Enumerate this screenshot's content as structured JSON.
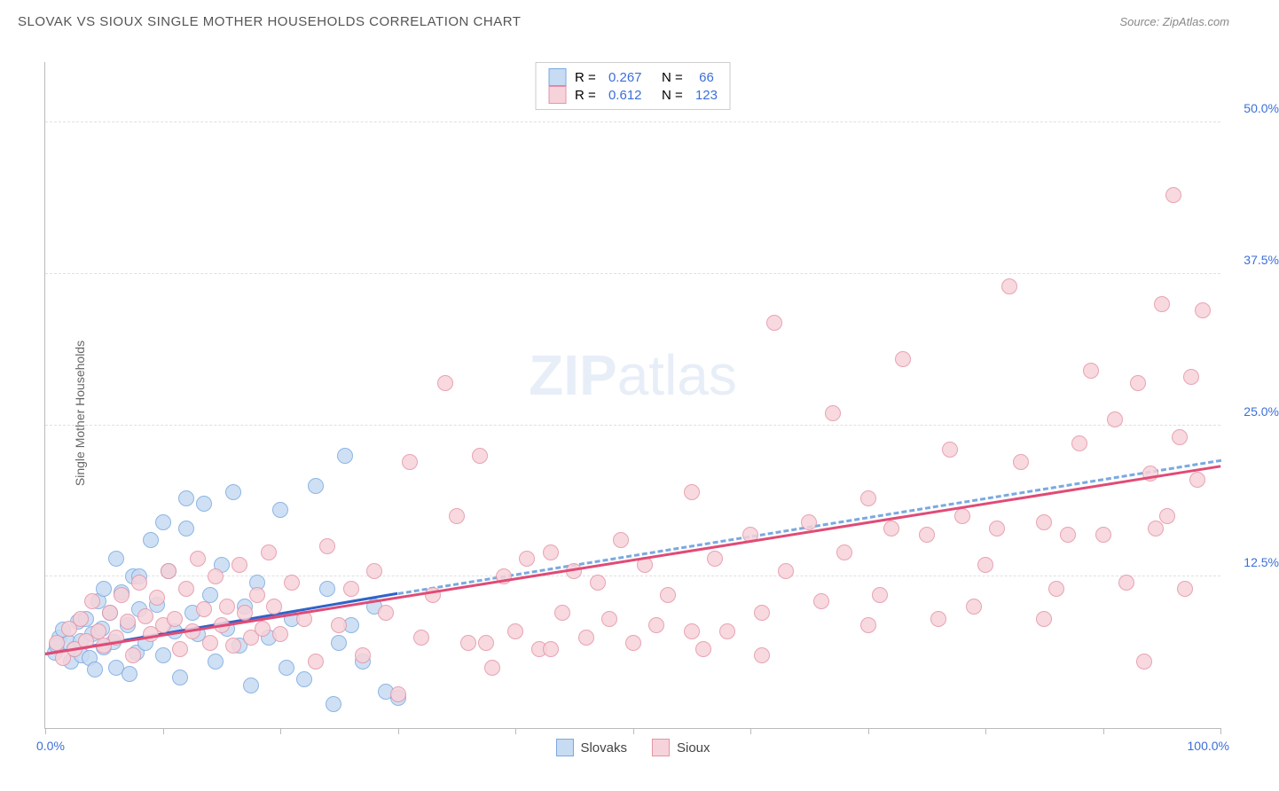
{
  "title": "SLOVAK VS SIOUX SINGLE MOTHER HOUSEHOLDS CORRELATION CHART",
  "source": "Source: ZipAtlas.com",
  "ylabel": "Single Mother Households",
  "watermark_a": "ZIP",
  "watermark_b": "atlas",
  "chart": {
    "type": "scatter",
    "xlim": [
      0,
      100
    ],
    "ylim": [
      0,
      55
    ],
    "yticks": [
      12.5,
      25.0,
      37.5,
      50.0
    ],
    "ytick_labels": [
      "12.5%",
      "25.0%",
      "37.5%",
      "50.0%"
    ],
    "xticks": [
      0,
      10,
      20,
      30,
      40,
      50,
      60,
      70,
      80,
      90,
      100
    ],
    "x_left_label": "0.0%",
    "x_right_label": "100.0%",
    "background_color": "#ffffff",
    "grid_color": "#e0e0e0",
    "axis_color": "#bbbbbb",
    "label_color": "#3b6fd8",
    "marker_size": 18,
    "watermark_color": "#e8eef8",
    "series": [
      {
        "name": "Slovaks",
        "fill": "#c7dbf3",
        "stroke": "#7aa9e0",
        "trend_color": "#2f63c9",
        "trend_dash": "none",
        "r": "0.267",
        "n": "66",
        "trend": {
          "x1": 0,
          "y1": 6.0,
          "x2": 30,
          "y2": 11.0
        },
        "trend_ext": {
          "x1": 30,
          "y1": 11.0,
          "x2": 100,
          "y2": 22.0,
          "dash": "4,4",
          "color": "#7aa9e0"
        },
        "points": [
          [
            0.8,
            6.2
          ],
          [
            1.2,
            7.5
          ],
          [
            1.0,
            6.8
          ],
          [
            1.5,
            8.1
          ],
          [
            2.0,
            7.0
          ],
          [
            2.2,
            5.5
          ],
          [
            2.5,
            6.5
          ],
          [
            2.8,
            8.8
          ],
          [
            3.0,
            7.2
          ],
          [
            3.1,
            6.0
          ],
          [
            3.5,
            9.0
          ],
          [
            3.8,
            5.8
          ],
          [
            4.0,
            7.8
          ],
          [
            4.2,
            4.8
          ],
          [
            4.5,
            10.5
          ],
          [
            4.8,
            8.2
          ],
          [
            5.0,
            6.7
          ],
          [
            5.5,
            9.5
          ],
          [
            5.8,
            7.1
          ],
          [
            6.0,
            5.0
          ],
          [
            6.5,
            11.2
          ],
          [
            7.0,
            8.5
          ],
          [
            7.2,
            4.5
          ],
          [
            7.5,
            12.5
          ],
          [
            7.8,
            6.2
          ],
          [
            8.0,
            9.8
          ],
          [
            8.5,
            7.0
          ],
          [
            9.0,
            15.5
          ],
          [
            9.5,
            10.2
          ],
          [
            10.0,
            6.0
          ],
          [
            10.5,
            13.0
          ],
          [
            11.0,
            8.0
          ],
          [
            11.5,
            4.2
          ],
          [
            12.0,
            19.0
          ],
          [
            12.5,
            9.5
          ],
          [
            13.0,
            7.8
          ],
          [
            13.5,
            18.5
          ],
          [
            14.0,
            11.0
          ],
          [
            14.5,
            5.5
          ],
          [
            15.0,
            13.5
          ],
          [
            15.5,
            8.2
          ],
          [
            16.0,
            19.5
          ],
          [
            16.5,
            6.8
          ],
          [
            17.0,
            10.0
          ],
          [
            17.5,
            3.5
          ],
          [
            18.0,
            12.0
          ],
          [
            19.0,
            7.5
          ],
          [
            20.0,
            18.0
          ],
          [
            20.5,
            5.0
          ],
          [
            21.0,
            9.0
          ],
          [
            22.0,
            4.0
          ],
          [
            23.0,
            20.0
          ],
          [
            24.0,
            11.5
          ],
          [
            24.5,
            2.0
          ],
          [
            25.0,
            7.0
          ],
          [
            25.5,
            22.5
          ],
          [
            26.0,
            8.5
          ],
          [
            27.0,
            5.5
          ],
          [
            28.0,
            10.0
          ],
          [
            29.0,
            3.0
          ],
          [
            30.0,
            2.5
          ],
          [
            12.0,
            16.5
          ],
          [
            10.0,
            17.0
          ],
          [
            8.0,
            12.5
          ],
          [
            6.0,
            14.0
          ],
          [
            5.0,
            11.5
          ]
        ]
      },
      {
        "name": "Sioux",
        "fill": "#f6d3da",
        "stroke": "#e593a6",
        "trend_color": "#e14b76",
        "trend_dash": "none",
        "r": "0.612",
        "n": "123",
        "trend": {
          "x1": 0,
          "y1": 6.0,
          "x2": 100,
          "y2": 21.5
        },
        "points": [
          [
            1.0,
            7.0
          ],
          [
            1.5,
            5.8
          ],
          [
            2.0,
            8.2
          ],
          [
            2.5,
            6.5
          ],
          [
            3.0,
            9.0
          ],
          [
            3.5,
            7.2
          ],
          [
            4.0,
            10.5
          ],
          [
            4.5,
            8.0
          ],
          [
            5.0,
            6.8
          ],
          [
            5.5,
            9.5
          ],
          [
            6.0,
            7.5
          ],
          [
            6.5,
            11.0
          ],
          [
            7.0,
            8.8
          ],
          [
            7.5,
            6.0
          ],
          [
            8.0,
            12.0
          ],
          [
            8.5,
            9.2
          ],
          [
            9.0,
            7.8
          ],
          [
            9.5,
            10.8
          ],
          [
            10.0,
            8.5
          ],
          [
            10.5,
            13.0
          ],
          [
            11.0,
            9.0
          ],
          [
            11.5,
            6.5
          ],
          [
            12.0,
            11.5
          ],
          [
            12.5,
            8.0
          ],
          [
            13.0,
            14.0
          ],
          [
            13.5,
            9.8
          ],
          [
            14.0,
            7.0
          ],
          [
            14.5,
            12.5
          ],
          [
            15.0,
            8.5
          ],
          [
            15.5,
            10.0
          ],
          [
            16.0,
            6.8
          ],
          [
            16.5,
            13.5
          ],
          [
            17.0,
            9.5
          ],
          [
            17.5,
            7.5
          ],
          [
            18.0,
            11.0
          ],
          [
            18.5,
            8.2
          ],
          [
            19.0,
            14.5
          ],
          [
            19.5,
            10.0
          ],
          [
            20.0,
            7.8
          ],
          [
            21.0,
            12.0
          ],
          [
            22.0,
            9.0
          ],
          [
            23.0,
            5.5
          ],
          [
            24.0,
            15.0
          ],
          [
            25.0,
            8.5
          ],
          [
            26.0,
            11.5
          ],
          [
            27.0,
            6.0
          ],
          [
            28.0,
            13.0
          ],
          [
            29.0,
            9.5
          ],
          [
            30.0,
            2.8
          ],
          [
            31.0,
            22.0
          ],
          [
            32.0,
            7.5
          ],
          [
            33.0,
            11.0
          ],
          [
            34.0,
            28.5
          ],
          [
            35.0,
            17.5
          ],
          [
            36.0,
            7.0
          ],
          [
            37.0,
            22.5
          ],
          [
            38.0,
            5.0
          ],
          [
            39.0,
            12.5
          ],
          [
            40.0,
            8.0
          ],
          [
            41.0,
            14.0
          ],
          [
            42.0,
            6.5
          ],
          [
            43.0,
            14.5
          ],
          [
            44.0,
            9.5
          ],
          [
            45.0,
            13.0
          ],
          [
            46.0,
            7.5
          ],
          [
            47.0,
            12.0
          ],
          [
            48.0,
            9.0
          ],
          [
            49.0,
            15.5
          ],
          [
            50.0,
            7.0
          ],
          [
            51.0,
            13.5
          ],
          [
            52.0,
            8.5
          ],
          [
            53.0,
            11.0
          ],
          [
            55.0,
            19.5
          ],
          [
            56.0,
            6.5
          ],
          [
            57.0,
            14.0
          ],
          [
            58.0,
            8.0
          ],
          [
            60.0,
            16.0
          ],
          [
            61.0,
            9.5
          ],
          [
            62.0,
            33.5
          ],
          [
            63.0,
            13.0
          ],
          [
            65.0,
            17.0
          ],
          [
            66.0,
            10.5
          ],
          [
            67.0,
            26.0
          ],
          [
            68.0,
            14.5
          ],
          [
            70.0,
            19.0
          ],
          [
            71.0,
            11.0
          ],
          [
            72.0,
            16.5
          ],
          [
            73.0,
            30.5
          ],
          [
            75.0,
            16.0
          ],
          [
            76.0,
            9.0
          ],
          [
            77.0,
            23.0
          ],
          [
            78.0,
            17.5
          ],
          [
            80.0,
            13.5
          ],
          [
            81.0,
            16.5
          ],
          [
            82.0,
            36.5
          ],
          [
            83.0,
            22.0
          ],
          [
            85.0,
            17.0
          ],
          [
            86.0,
            11.5
          ],
          [
            87.0,
            16.0
          ],
          [
            88.0,
            23.5
          ],
          [
            89.0,
            29.5
          ],
          [
            90.0,
            16.0
          ],
          [
            91.0,
            25.5
          ],
          [
            92.0,
            12.0
          ],
          [
            93.0,
            28.5
          ],
          [
            93.5,
            5.5
          ],
          [
            94.0,
            21.0
          ],
          [
            94.5,
            16.5
          ],
          [
            95.0,
            35.0
          ],
          [
            95.5,
            17.5
          ],
          [
            96.0,
            44.0
          ],
          [
            96.5,
            24.0
          ],
          [
            97.0,
            11.5
          ],
          [
            97.5,
            29.0
          ],
          [
            98.0,
            20.5
          ],
          [
            98.5,
            34.5
          ],
          [
            37.5,
            7.0
          ],
          [
            43.0,
            6.5
          ],
          [
            55.0,
            8.0
          ],
          [
            61.0,
            6.0
          ],
          [
            70.0,
            8.5
          ],
          [
            79.0,
            10.0
          ],
          [
            85.0,
            9.0
          ]
        ]
      }
    ]
  },
  "legend_bottom": [
    {
      "label": "Slovaks",
      "fill": "#c7dbf3",
      "stroke": "#7aa9e0"
    },
    {
      "label": "Sioux",
      "fill": "#f6d3da",
      "stroke": "#e593a6"
    }
  ]
}
